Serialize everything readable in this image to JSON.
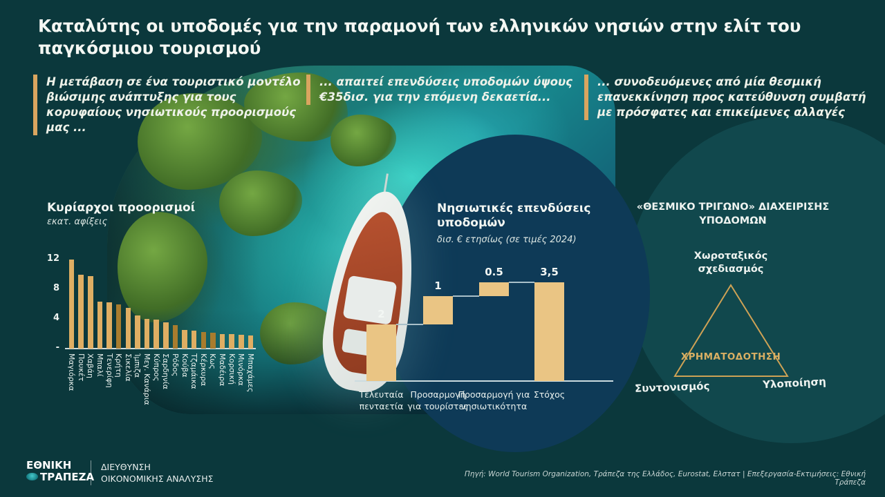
{
  "title": "Καταλύτης οι υποδομές για την παραμονή των ελληνικών νησιών στην ελίτ του παγκόσμιου τουρισμού",
  "callouts": [
    {
      "text": "Η μετάβαση σε ένα τουριστικό μοντέλο βιώσιμης ανάπτυξης για τους κορυφαίους νησιωτικούς προορισμούς μας ..."
    },
    {
      "text": "... απαιτεί επενδύσεις υποδομών ύψους €35δισ. για την επόμενη δεκαετία..."
    },
    {
      "text": "... συνοδευόμενες από μία θεσμική επανεκκίνηση προς κατεύθυνση συμβατή με πρόσφατες και επικείμενες αλλαγές"
    }
  ],
  "chart_data": [
    {
      "type": "bar",
      "title": "Κυρίαρχοι προορισμοί",
      "subtitle": "εκατ. αφίξεις",
      "categories": [
        "Μαγιόρκα",
        "Πουκέτ",
        "Χαβάη",
        "Μπαλί",
        "Τενερίφη",
        "Κρήτη",
        "Σικελία",
        "Ίμπιζα",
        "Μεγ. Κανάρια",
        "Κύπρος",
        "Σαρδηνία",
        "Ρόδος",
        "Κούβα",
        "Τζαμάικα",
        "Κέρκυρα",
        "Κως",
        "Μαδέιρα",
        "Κορσική",
        "Μινόρκα",
        "Μπαχάμες"
      ],
      "values": [
        12,
        10,
        9.8,
        6.3,
        6.2,
        6,
        5.5,
        4.5,
        4,
        3.9,
        3.5,
        3.2,
        2.5,
        2.4,
        2.2,
        2.1,
        2,
        2,
        1.9,
        1.8
      ],
      "highlight_indices": [
        5,
        11,
        14,
        15
      ],
      "highlight_note": "greek-islands-darker-bars",
      "yticks": [
        {
          "label": "12",
          "value": 12
        },
        {
          "label": "8",
          "value": 8
        },
        {
          "label": "4",
          "value": 4
        },
        {
          "label": "-",
          "value": 0
        }
      ],
      "ylim": [
        0,
        12
      ],
      "grid": false,
      "legend": false
    },
    {
      "type": "waterfall",
      "title": "Νησιωτικές επενδύσεις υποδομών",
      "subtitle": "δισ. € ετησίως (σε τιμές 2024)",
      "categories": [
        "Τελευταία πενταετία",
        "Προσαρμογή για τουρίστες",
        "Προσαρμογή για νησιωτικότητα",
        "Στόχος"
      ],
      "categories_display": [
        "Τελευταία\nπενταετία",
        "Προσαρμογή\nγια τουρίστες",
        "Προσαρμογή για\nνησιωτικότητα",
        "Στόχος"
      ],
      "values": [
        2,
        1,
        0.5,
        3.5
      ],
      "value_labels": [
        "2",
        "1",
        "0.5",
        "3,5"
      ],
      "segments": [
        [
          0,
          2
        ],
        [
          2,
          3
        ],
        [
          3,
          3.5
        ],
        [
          0,
          3.5
        ]
      ],
      "ylim": [
        0,
        3.5
      ],
      "grid": false,
      "legend": false
    }
  ],
  "triangle_diagram": {
    "title": "«ΘΕΣΜΙΚΟ ΤΡΙΓΩΝΟ» ΔΙΑΧΕΙΡΙΣΗΣ ΥΠΟΔΟΜΩΝ",
    "top_label": "Χωροταξικός σχεδιασμός",
    "center_label": "ΧΡΗΜΑΤΟΔΟΤΗΣΗ",
    "bottom_left_label": "Συντονισμός",
    "bottom_right_label": "Υλοποίηση"
  },
  "footer": {
    "logo_line1": "ΕΘΝΙΚΗ",
    "logo_line2": "ΤΡΑΠΕΖΑ",
    "department_line1": "ΔΙΕΥΘΥΝΣΗ",
    "department_line2": "ΟΙΚΟΝΟΜΙΚΗΣ ΑΝΑΛΥΣΗΣ",
    "source": "Πηγή: World Tourism Organization, Τράπεζα της Ελλάδος, Eurostat, Ελστατ | Επεξεργασία-Εκτιμήσεις: Εθνική Τράπεζα"
  },
  "colors": {
    "background": "#0b383c",
    "accent_gold": "#d9a55f",
    "bar_color": "#dfae63",
    "bar_highlight_color": "#a87c2e",
    "waterfall_bar_color": "#eac584",
    "navy_circle": "#0e3a57",
    "light_circle": "#11484d",
    "triangle_stroke": "#cfa255",
    "gold_text": "#d9af63"
  }
}
